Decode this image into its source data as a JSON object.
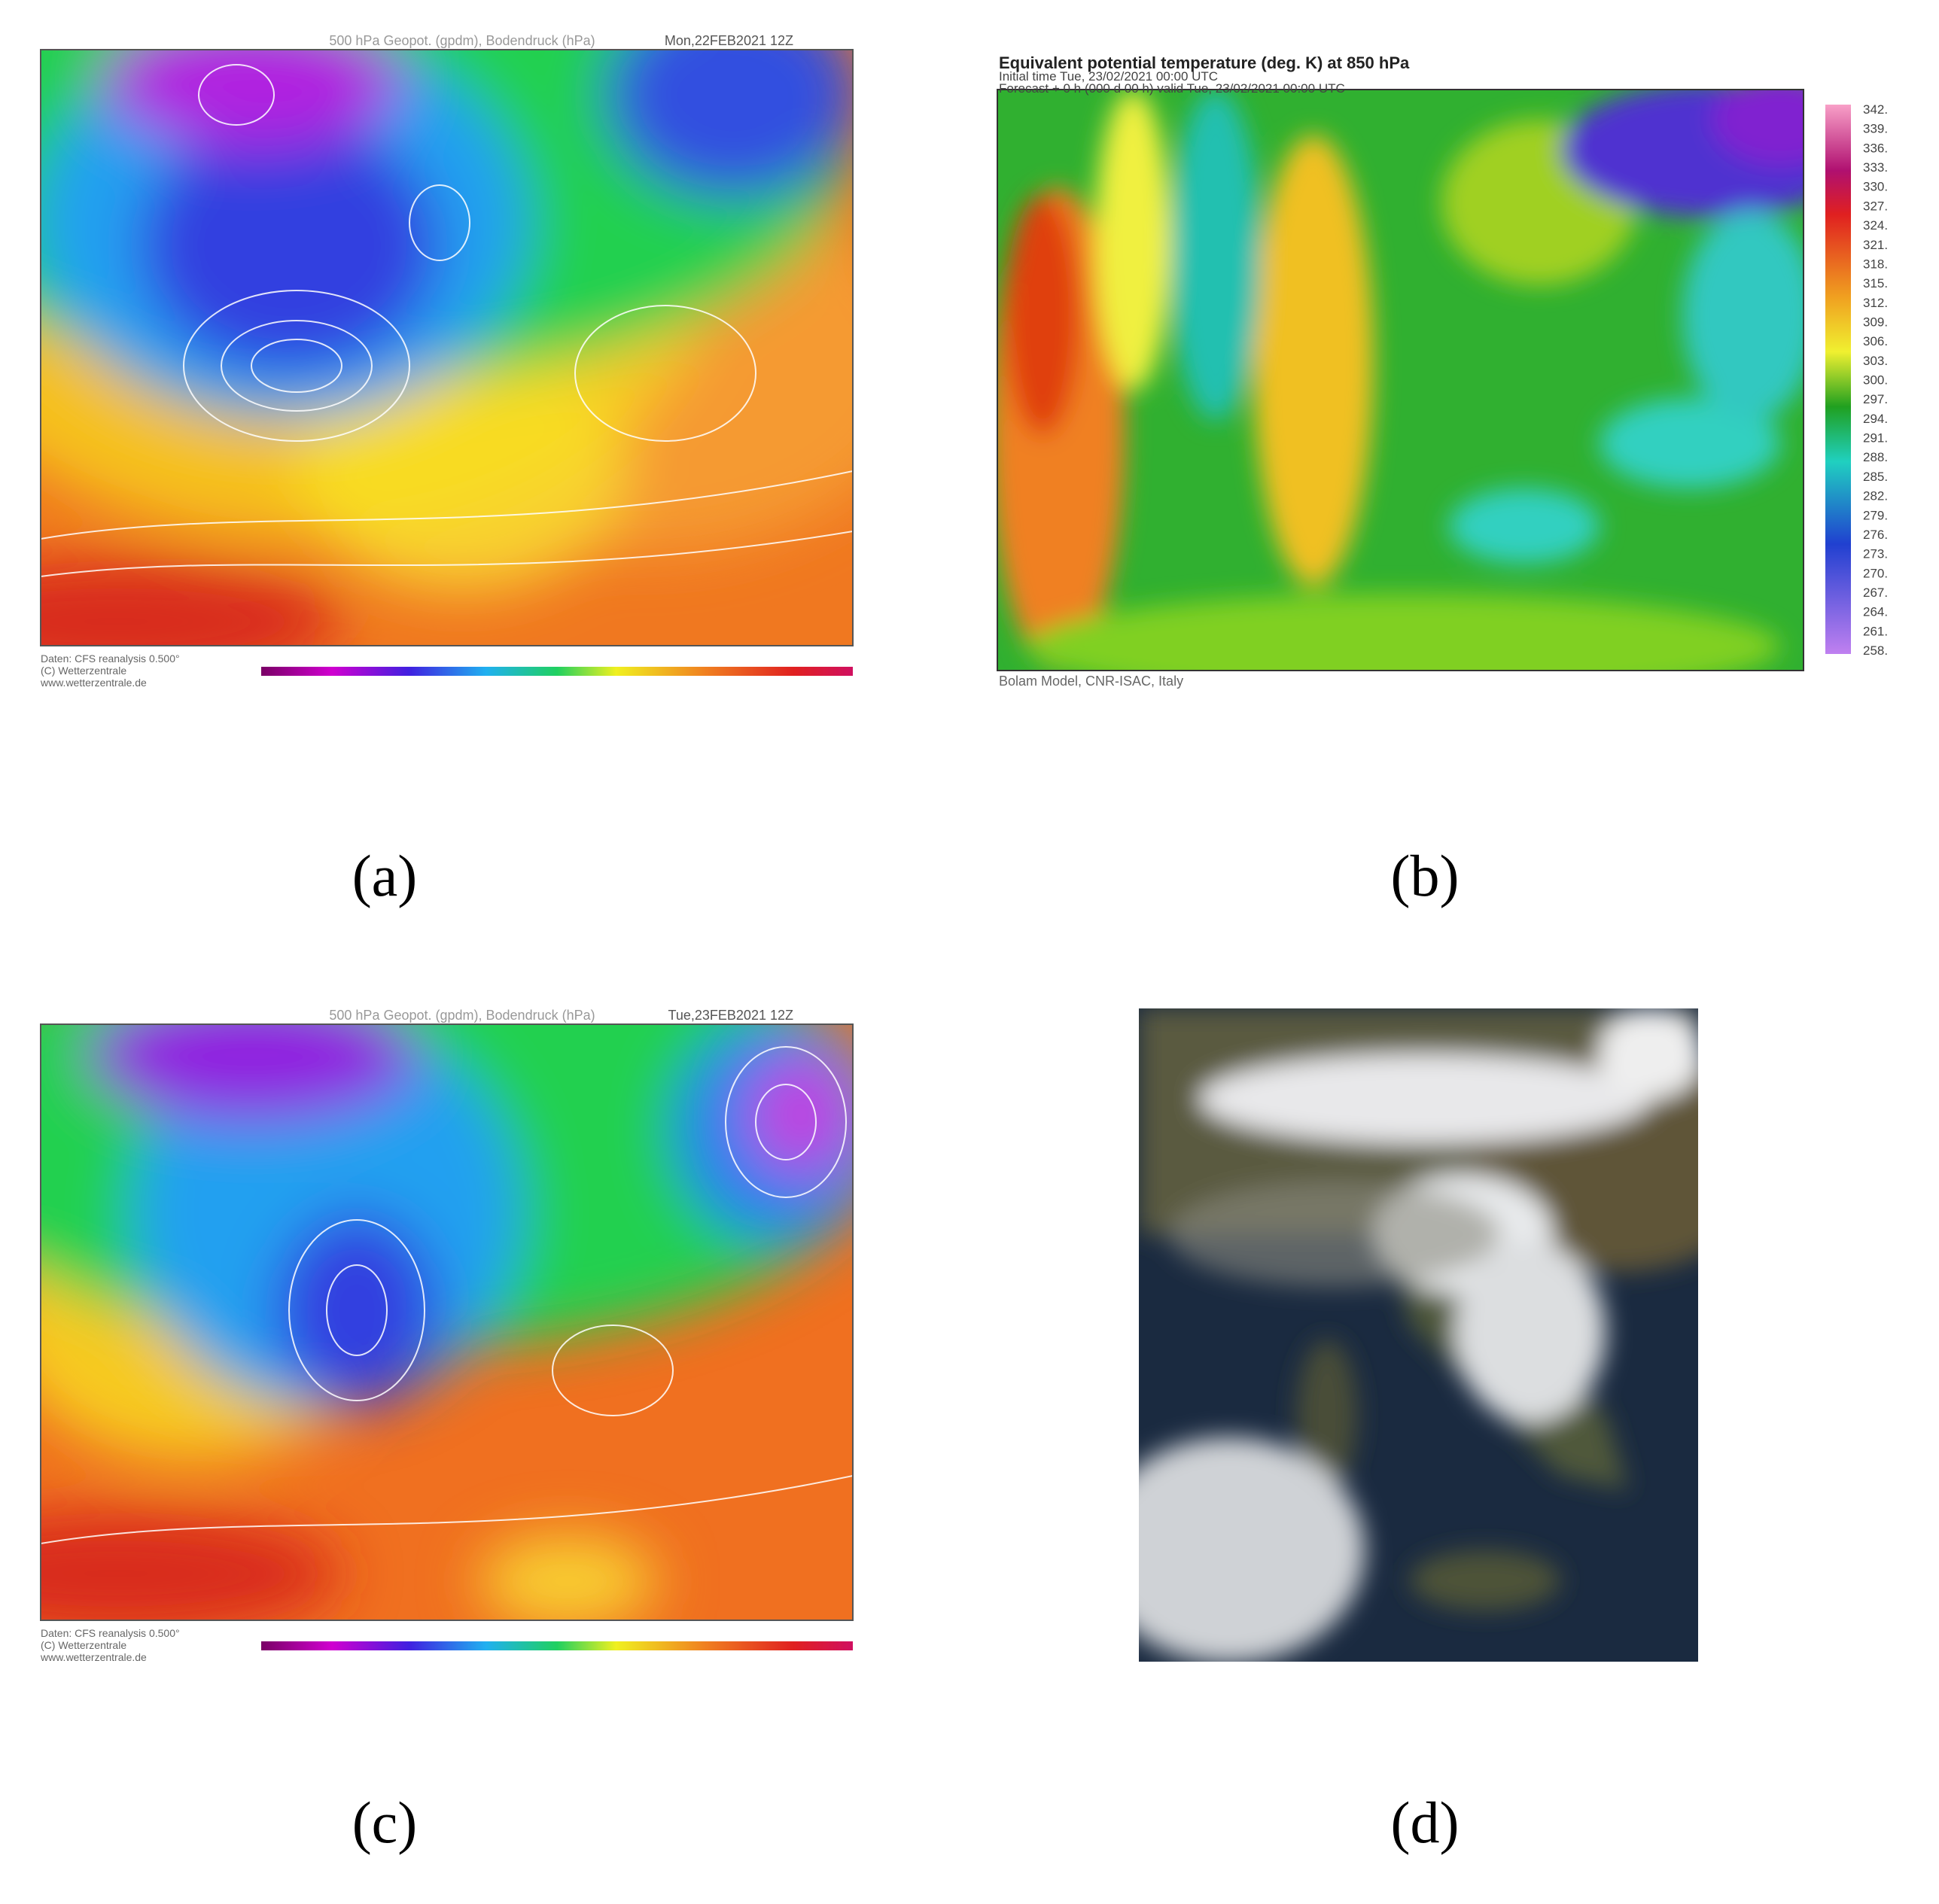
{
  "panel_a": {
    "header": "500 hPa Geopot. (gpdm), Bodendruck (hPa)",
    "date": "Mon,22FEB2021 12Z",
    "footer": [
      "Daten: CFS reanalysis 0.500°",
      "(C) Wetterzentrale",
      "www.wetterzentrale.de"
    ],
    "label": "(a)"
  },
  "panel_b": {
    "title": "Equivalent potential temperature (deg. K) at 850 hPa",
    "initial_time": "Initial time  Tue, 23/02/2021  00:00 UTC",
    "forecast": "Forecast  +   0 h  (000 d 00 h)  valid Tue, 23/02/2021 00:00 UTC",
    "footer": "Bolam Model, CNR-ISAC, Italy",
    "colorbar_labels": [
      "342.",
      "339.",
      "336.",
      "333.",
      "330.",
      "327.",
      "324.",
      "321.",
      "318.",
      "315.",
      "312.",
      "309.",
      "306.",
      "303.",
      "300.",
      "297.",
      "294.",
      "291.",
      "288.",
      "285.",
      "282.",
      "279.",
      "276.",
      "273.",
      "270.",
      "267.",
      "264.",
      "261.",
      "258."
    ],
    "label": "(b)"
  },
  "panel_c": {
    "header": "500 hPa Geopot. (gpdm), Bodendruck (hPa)",
    "date": "Tue,23FEB2021 12Z",
    "footer": [
      "Daten: CFS reanalysis 0.500°",
      "(C) Wetterzentrale",
      "www.wetterzentrale.de"
    ],
    "label": "(c)"
  },
  "panel_d": {
    "label": "(d)"
  }
}
